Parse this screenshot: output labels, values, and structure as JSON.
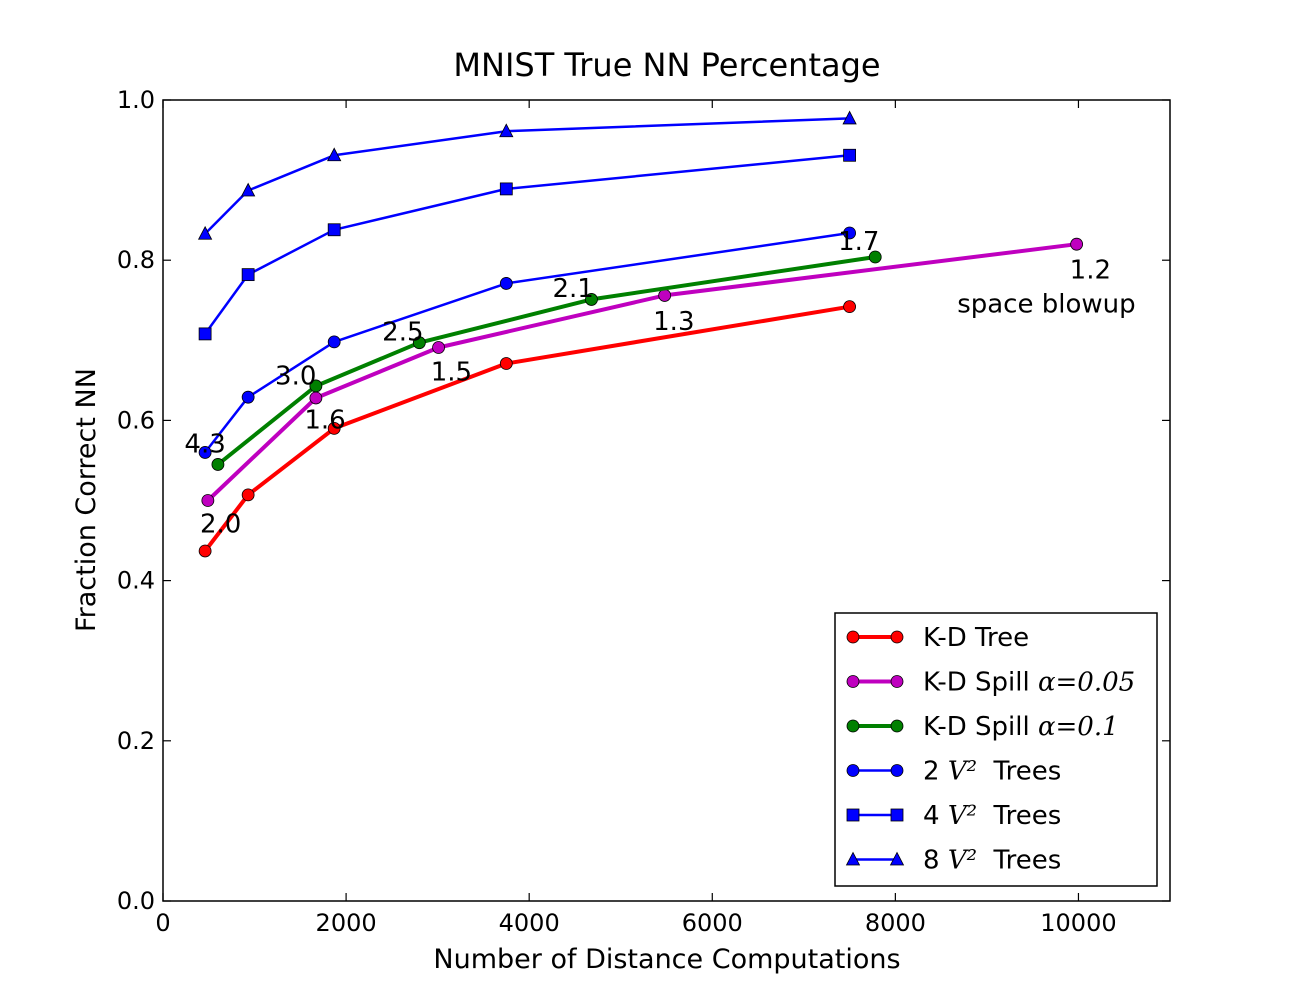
{
  "chart_data": {
    "type": "line",
    "title": "MNIST True NN Percentage",
    "xlabel": "Number of Distance Computations",
    "ylabel": "Fraction Correct NN",
    "xlim": [
      0,
      11000
    ],
    "ylim": [
      0.0,
      1.0
    ],
    "x_ticks": [
      0,
      2000,
      4000,
      6000,
      8000,
      10000
    ],
    "x_tick_labels": [
      "0",
      "2000",
      "4000",
      "6000",
      "8000",
      "10000"
    ],
    "y_ticks": [
      0.0,
      0.2,
      0.4,
      0.6,
      0.8,
      1.0
    ],
    "y_tick_labels": [
      "0.0",
      "0.2",
      "0.4",
      "0.6",
      "0.8",
      "1.0"
    ],
    "grid": false,
    "legend_position": "lower-right",
    "series": [
      {
        "name": "K-D Tree",
        "legend_prefix": "K-D Tree",
        "legend_math": "",
        "legend_suffix": "",
        "color": "#ff0000",
        "marker": "circle",
        "line_width": 4,
        "points": [
          [
            460,
            0.437
          ],
          [
            930,
            0.507
          ],
          [
            1870,
            0.59
          ],
          [
            3750,
            0.671
          ],
          [
            7500,
            0.742
          ]
        ]
      },
      {
        "name": "K-D Spill α=0.05",
        "legend_prefix": "K-D Spill ",
        "legend_math": "α=0.05",
        "legend_suffix": "",
        "color": "#bf00bf",
        "marker": "circle",
        "line_width": 4,
        "points": [
          [
            490,
            0.5
          ],
          [
            1670,
            0.628
          ],
          [
            3010,
            0.691
          ],
          [
            5480,
            0.756
          ],
          [
            9980,
            0.82
          ]
        ]
      },
      {
        "name": "K-D Spill α=0.1",
        "legend_prefix": "K-D Spill ",
        "legend_math": "α=0.1",
        "legend_suffix": "",
        "color": "#008000",
        "marker": "circle",
        "line_width": 4,
        "points": [
          [
            600,
            0.545
          ],
          [
            1670,
            0.643
          ],
          [
            2800,
            0.697
          ],
          [
            4680,
            0.751
          ],
          [
            7780,
            0.804
          ]
        ]
      },
      {
        "name": "2 V² Trees",
        "legend_prefix": "2 ",
        "legend_math": "V²",
        "legend_suffix": "  Trees",
        "color": "#0000ff",
        "marker": "circle",
        "line_width": 2.5,
        "points": [
          [
            460,
            0.56
          ],
          [
            930,
            0.629
          ],
          [
            1870,
            0.698
          ],
          [
            3750,
            0.771
          ],
          [
            7500,
            0.834
          ]
        ]
      },
      {
        "name": "4 V² Trees",
        "legend_prefix": "4 ",
        "legend_math": "V²",
        "legend_suffix": "  Trees",
        "color": "#0000ff",
        "marker": "square",
        "line_width": 2.5,
        "points": [
          [
            460,
            0.708
          ],
          [
            930,
            0.782
          ],
          [
            1870,
            0.838
          ],
          [
            3750,
            0.889
          ],
          [
            7500,
            0.931
          ]
        ]
      },
      {
        "name": "8 V² Trees",
        "legend_prefix": "8 ",
        "legend_math": "V²",
        "legend_suffix": "  Trees",
        "color": "#0000ff",
        "marker": "triangle",
        "line_width": 2.5,
        "points": [
          [
            460,
            0.833
          ],
          [
            930,
            0.887
          ],
          [
            1870,
            0.931
          ],
          [
            3750,
            0.961
          ],
          [
            7500,
            0.977
          ]
        ]
      }
    ],
    "annotations": [
      {
        "text": "4.3",
        "x": 460,
        "y": 0.56
      },
      {
        "text": "3.0",
        "x": 1450,
        "y": 0.645
      },
      {
        "text": "2.5",
        "x": 2620,
        "y": 0.7
      },
      {
        "text": "2.1",
        "x": 4480,
        "y": 0.754
      },
      {
        "text": "1.7",
        "x": 7600,
        "y": 0.813
      },
      {
        "text": "2.0",
        "x": 630,
        "y": 0.46
      },
      {
        "text": "1.6",
        "x": 1770,
        "y": 0.59
      },
      {
        "text": "1.5",
        "x": 3150,
        "y": 0.65
      },
      {
        "text": "1.3",
        "x": 5580,
        "y": 0.713
      },
      {
        "text": "1.2",
        "x": 10130,
        "y": 0.777
      },
      {
        "text": "space blowup",
        "x": 9650,
        "y": 0.735
      }
    ]
  }
}
